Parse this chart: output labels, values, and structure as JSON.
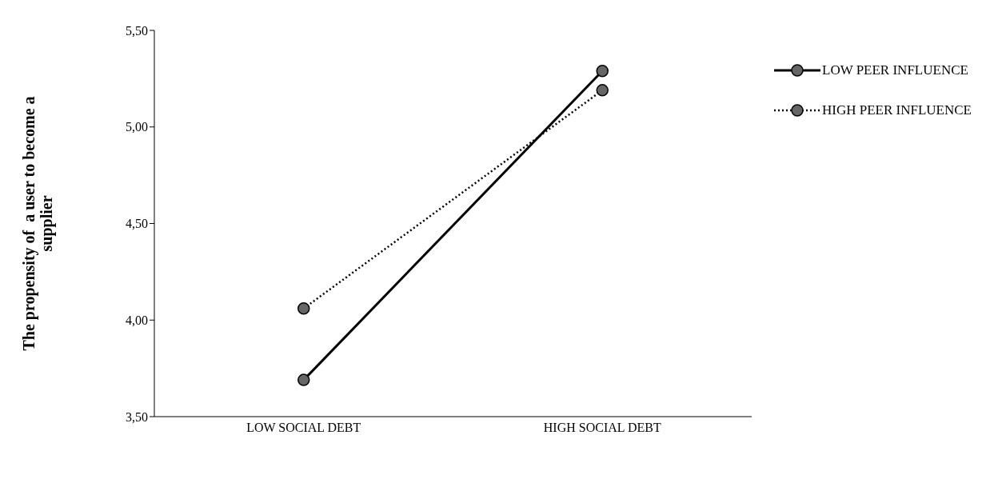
{
  "chart_data": {
    "type": "line",
    "ylabel": "The propensity of  a user to become a supplier",
    "categories": [
      "LOW SOCIAL DEBT",
      "HIGH SOCIAL DEBT"
    ],
    "series": [
      {
        "name": "LOW PEER INFLUENCE",
        "color": "#000000",
        "values": [
          3.69,
          5.29
        ],
        "line_style": "solid"
      },
      {
        "name": "HIGH PEER INFLUENCE",
        "color": "#000000",
        "values": [
          4.06,
          5.19
        ],
        "line_style": "dotted"
      }
    ],
    "ylim": [
      3.5,
      5.5
    ],
    "yticks": [
      {
        "value": 3.5,
        "label": "3,50"
      },
      {
        "value": 4,
        "label": "4,00"
      },
      {
        "value": 4.5,
        "label": "4,50"
      },
      {
        "value": 5,
        "label": "5,00"
      },
      {
        "value": 5.5,
        "label": "5,50"
      }
    ],
    "marker": "circle",
    "legend": "top right"
  }
}
